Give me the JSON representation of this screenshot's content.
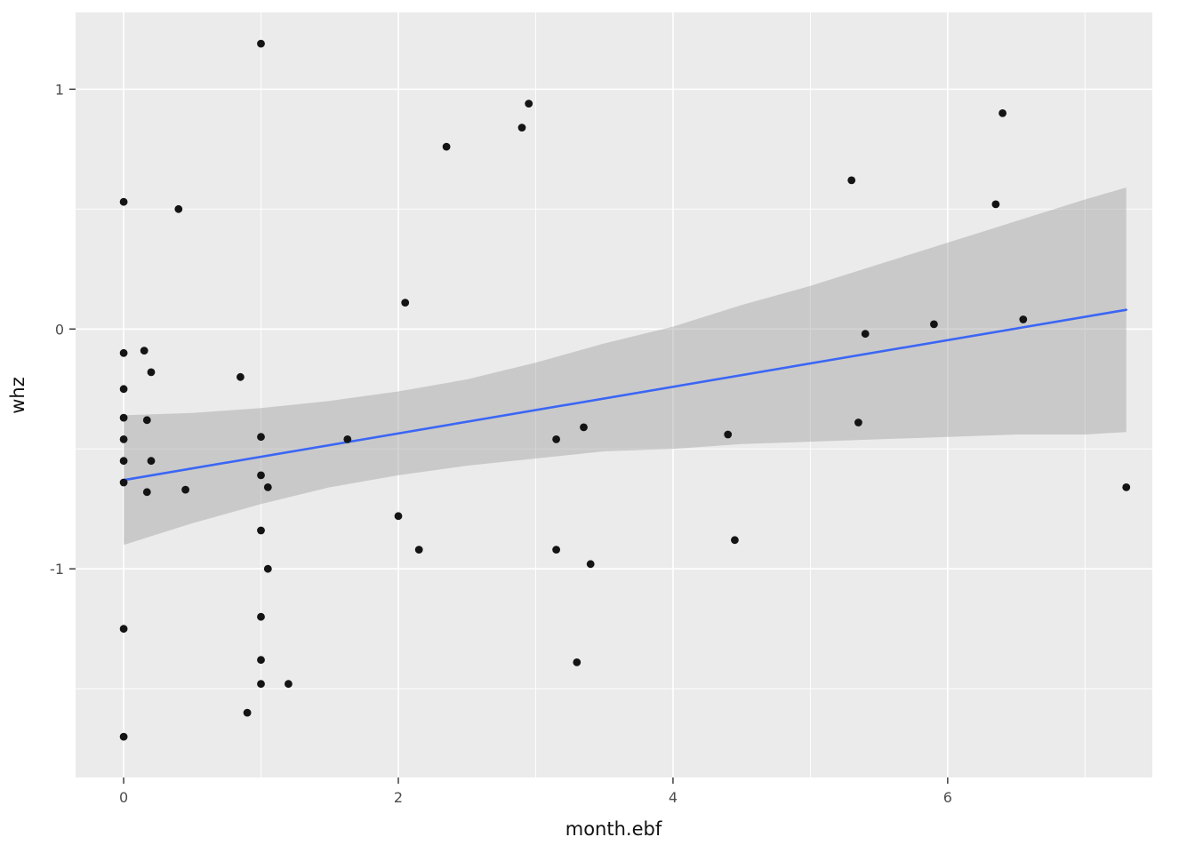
{
  "chart_data": {
    "type": "scatter",
    "title": "",
    "xlabel": "month.ebf",
    "ylabel": "whz",
    "xlim": [
      -0.35,
      7.49
    ],
    "ylim": [
      -1.87,
      1.32
    ],
    "x_ticks": [
      0,
      2,
      4,
      6
    ],
    "x_minor_ticks": [
      1,
      3,
      5,
      7
    ],
    "y_ticks": [
      -1,
      0,
      1
    ],
    "y_minor_ticks": [
      -1.5,
      -0.5,
      0.5
    ],
    "grid": true,
    "legend_position": "none",
    "points": [
      [
        0,
        0.53
      ],
      [
        0.4,
        0.5
      ],
      [
        1.0,
        1.19
      ],
      [
        2.35,
        0.76
      ],
      [
        2.9,
        0.84
      ],
      [
        2.95,
        0.94
      ],
      [
        5.3,
        0.62
      ],
      [
        6.35,
        0.52
      ],
      [
        6.4,
        0.9
      ],
      [
        2.05,
        0.11
      ],
      [
        5.4,
        -0.02
      ],
      [
        5.9,
        0.02
      ],
      [
        6.55,
        0.04
      ],
      [
        0,
        -0.1
      ],
      [
        0.15,
        -0.09
      ],
      [
        0.2,
        -0.18
      ],
      [
        0.85,
        -0.2
      ],
      [
        0,
        -0.25
      ],
      [
        0,
        -0.37
      ],
      [
        0.17,
        -0.38
      ],
      [
        3.35,
        -0.41
      ],
      [
        4.4,
        -0.44
      ],
      [
        5.35,
        -0.39
      ],
      [
        0,
        -0.46
      ],
      [
        1.0,
        -0.45
      ],
      [
        1.63,
        -0.46
      ],
      [
        3.15,
        -0.46
      ],
      [
        0,
        -0.55
      ],
      [
        0.2,
        -0.55
      ],
      [
        0,
        -0.64
      ],
      [
        1.0,
        -0.61
      ],
      [
        1.05,
        -0.66
      ],
      [
        0.17,
        -0.68
      ],
      [
        0.45,
        -0.67
      ],
      [
        7.3,
        -0.66
      ],
      [
        2.0,
        -0.78
      ],
      [
        1.0,
        -0.84
      ],
      [
        4.45,
        -0.88
      ],
      [
        2.15,
        -0.92
      ],
      [
        3.15,
        -0.92
      ],
      [
        3.4,
        -0.98
      ],
      [
        1.05,
        -1.0
      ],
      [
        0,
        -1.25
      ],
      [
        1.0,
        -1.2
      ],
      [
        3.3,
        -1.39
      ],
      [
        1.0,
        -1.38
      ],
      [
        1.0,
        -1.48
      ],
      [
        1.2,
        -1.48
      ],
      [
        0.9,
        -1.6
      ],
      [
        0,
        -1.7
      ]
    ],
    "regression_line": {
      "model": "linear",
      "x_start": 0,
      "y_start": -0.63,
      "x_end": 7.3,
      "y_end": 0.08
    },
    "confidence_ribbon": {
      "x": [
        0,
        0.5,
        1,
        1.5,
        2,
        2.5,
        3,
        3.5,
        4,
        4.5,
        5,
        5.5,
        6,
        6.5,
        7,
        7.3
      ],
      "upper": [
        -0.36,
        -0.35,
        -0.33,
        -0.3,
        -0.26,
        -0.21,
        -0.14,
        -0.06,
        0.01,
        0.1,
        0.18,
        0.27,
        0.36,
        0.45,
        0.54,
        0.59
      ],
      "lower": [
        -0.9,
        -0.81,
        -0.73,
        -0.66,
        -0.61,
        -0.57,
        -0.54,
        -0.51,
        -0.5,
        -0.48,
        -0.47,
        -0.46,
        -0.45,
        -0.44,
        -0.44,
        -0.43
      ]
    },
    "colors": {
      "panel_background": "#ebebeb",
      "grid_line": "#ffffff",
      "point": "#141414",
      "smooth_line": "#3b66f5",
      "ribbon": "#9b9b9b",
      "ribbon_opacity": 0.42,
      "tick_mark": "#333333",
      "tick_text": "#4d4d4d",
      "axis_title_text": "#111111"
    }
  }
}
